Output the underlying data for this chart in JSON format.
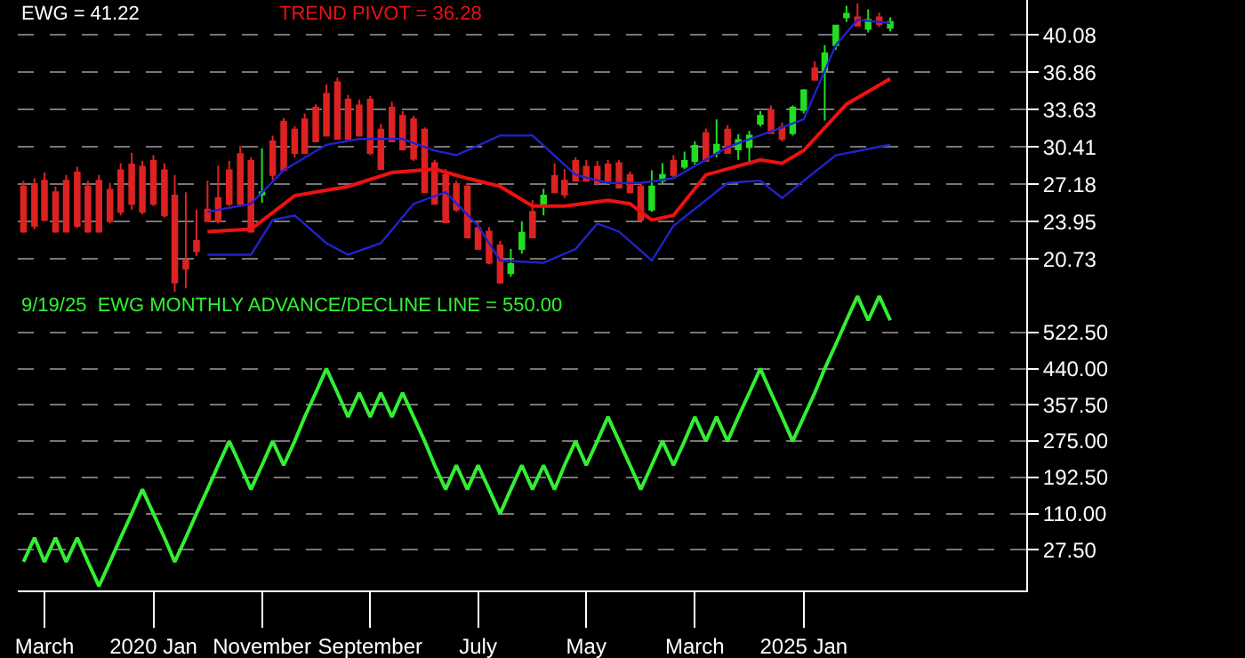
{
  "chart_data": [
    {
      "type": "candlestick",
      "x": [
        "2019-01",
        "2019-02",
        "2019-03",
        "2019-04",
        "2019-05",
        "2019-06",
        "2019-07",
        "2019-08",
        "2019-09",
        "2019-10",
        "2019-11",
        "2019-12",
        "2020-01",
        "2020-02",
        "2020-03",
        "2020-04",
        "2020-05",
        "2020-06",
        "2020-07",
        "2020-08",
        "2020-09",
        "2020-10",
        "2020-11",
        "2020-12",
        "2021-01",
        "2021-02",
        "2021-03",
        "2021-04",
        "2021-05",
        "2021-06",
        "2021-07",
        "2021-08",
        "2021-09",
        "2021-10",
        "2021-11",
        "2021-12",
        "2022-01",
        "2022-02",
        "2022-03",
        "2022-04",
        "2022-05",
        "2022-06",
        "2022-07",
        "2022-08",
        "2022-09",
        "2022-10",
        "2022-11",
        "2022-12",
        "2023-01",
        "2023-02",
        "2023-03",
        "2023-04",
        "2023-05",
        "2023-06",
        "2023-07",
        "2023-08",
        "2023-09",
        "2023-10",
        "2023-11",
        "2023-12",
        "2024-01",
        "2024-02",
        "2024-03",
        "2024-04",
        "2024-05",
        "2024-06",
        "2024-07",
        "2024-08",
        "2024-09",
        "2024-10",
        "2024-11",
        "2024-12",
        "2025-01",
        "2025-02",
        "2025-03",
        "2025-04",
        "2025-05",
        "2025-06",
        "2025-07",
        "2025-08",
        "2025-09"
      ],
      "ohlc": [
        [
          27.0,
          27.5,
          23.0,
          23.1
        ],
        [
          27.2,
          27.7,
          23.3,
          23.6
        ],
        [
          27.5,
          28.2,
          24.0,
          24.1
        ],
        [
          26.5,
          27.0,
          23.0,
          23.1
        ],
        [
          27.5,
          28.0,
          23.0,
          23.1
        ],
        [
          28.2,
          28.7,
          23.4,
          23.6
        ],
        [
          27.0,
          27.5,
          23.0,
          23.1
        ],
        [
          27.5,
          28.0,
          23.0,
          23.1
        ],
        [
          26.7,
          27.3,
          23.8,
          24.0
        ],
        [
          28.4,
          29.0,
          24.5,
          24.8
        ],
        [
          28.9,
          29.9,
          25.0,
          25.5
        ],
        [
          28.7,
          29.2,
          24.6,
          24.8
        ],
        [
          29.2,
          29.7,
          25.3,
          25.5
        ],
        [
          28.4,
          29.0,
          24.3,
          24.5
        ],
        [
          26.2,
          28.0,
          17.5,
          18.7
        ],
        [
          20.6,
          26.5,
          18.2,
          19.9
        ],
        [
          22.3,
          25.0,
          21.0,
          21.4
        ],
        [
          25.0,
          27.5,
          24.0,
          24.0
        ],
        [
          26.0,
          28.8,
          23.8,
          24.0
        ],
        [
          28.4,
          29.2,
          25.3,
          25.5
        ],
        [
          29.8,
          30.5,
          25.2,
          25.5
        ],
        [
          29.2,
          29.5,
          23.0,
          23.1
        ],
        [
          26.3,
          30.3,
          25.6,
          26.5
        ],
        [
          30.9,
          31.4,
          27.5,
          28.0
        ],
        [
          32.6,
          32.9,
          28.4,
          28.4
        ],
        [
          31.9,
          32.2,
          29.5,
          29.9
        ],
        [
          32.8,
          33.3,
          29.8,
          29.9
        ],
        [
          33.8,
          34.1,
          30.9,
          30.9
        ],
        [
          35.0,
          35.8,
          31.4,
          31.4
        ],
        [
          36.0,
          36.4,
          31.1,
          31.1
        ],
        [
          34.5,
          34.9,
          31.1,
          31.1
        ],
        [
          34.0,
          34.5,
          31.4,
          31.4
        ],
        [
          34.5,
          34.8,
          29.7,
          29.9
        ],
        [
          31.9,
          32.4,
          28.5,
          28.5
        ],
        [
          33.8,
          34.3,
          30.9,
          30.9
        ],
        [
          33.1,
          33.5,
          30.1,
          30.2
        ],
        [
          32.8,
          33.1,
          29.2,
          29.4
        ],
        [
          31.9,
          32.1,
          26.5,
          26.5
        ],
        [
          29.0,
          29.3,
          25.5,
          25.5
        ],
        [
          28.0,
          28.5,
          23.9,
          23.9
        ],
        [
          27.2,
          27.5,
          24.8,
          25.0
        ],
        [
          27.0,
          27.3,
          22.5,
          22.6
        ],
        [
          23.4,
          24.0,
          21.6,
          21.6
        ],
        [
          23.1,
          23.5,
          20.3,
          20.4
        ],
        [
          21.9,
          22.3,
          18.6,
          18.7
        ],
        [
          19.5,
          21.6,
          19.2,
          20.3
        ],
        [
          21.6,
          24.0,
          21.2,
          23.0
        ],
        [
          24.8,
          25.8,
          22.6,
          22.6
        ],
        [
          25.5,
          26.8,
          24.5,
          26.2
        ],
        [
          27.9,
          29.0,
          26.5,
          26.5
        ],
        [
          27.5,
          28.5,
          26.0,
          26.3
        ],
        [
          29.2,
          29.5,
          27.5,
          27.5
        ],
        [
          28.7,
          29.3,
          27.4,
          27.5
        ],
        [
          28.7,
          29.2,
          27.1,
          27.3
        ],
        [
          28.9,
          29.3,
          27.3,
          27.5
        ],
        [
          29.0,
          29.3,
          26.9,
          26.9
        ],
        [
          28.0,
          28.3,
          26.5,
          26.5
        ],
        [
          27.0,
          27.2,
          24.0,
          24.1
        ],
        [
          25.0,
          28.4,
          24.8,
          27.0
        ],
        [
          27.5,
          29.0,
          27.2,
          28.0
        ],
        [
          29.2,
          29.7,
          27.8,
          28.0
        ],
        [
          28.7,
          30.0,
          28.5,
          29.2
        ],
        [
          29.2,
          30.9,
          28.9,
          30.5
        ],
        [
          31.6,
          32.0,
          29.2,
          29.2
        ],
        [
          29.9,
          32.8,
          29.5,
          30.6
        ],
        [
          31.9,
          32.3,
          29.9,
          29.9
        ],
        [
          30.2,
          31.5,
          29.3,
          31.0
        ],
        [
          30.4,
          31.8,
          29.0,
          31.4
        ],
        [
          32.4,
          33.5,
          32.2,
          33.1
        ],
        [
          33.6,
          34.0,
          31.6,
          31.6
        ],
        [
          32.1,
          32.5,
          30.9,
          31.1
        ],
        [
          31.6,
          34.0,
          31.4,
          33.8
        ],
        [
          33.6,
          35.4,
          33.3,
          35.3
        ],
        [
          37.2,
          37.8,
          36.2,
          36.2
        ],
        [
          37.0,
          39.2,
          32.7,
          38.5
        ],
        [
          39.2,
          40.9,
          38.8,
          40.9
        ],
        [
          41.6,
          42.6,
          41.2,
          41.9
        ],
        [
          41.6,
          42.8,
          40.9,
          40.9
        ],
        [
          40.6,
          42.3,
          40.3,
          41.4
        ],
        [
          41.6,
          42.0,
          40.8,
          41.0
        ],
        [
          40.7,
          41.6,
          40.4,
          41.2
        ]
      ],
      "series": [
        {
          "type": "line",
          "color": "#ee1111",
          "x": [
            "2020-06",
            "2020-10",
            "2021-02",
            "2021-07",
            "2021-11",
            "2022-03",
            "2022-06",
            "2022-09",
            "2022-12",
            "2023-03",
            "2023-07",
            "2023-09",
            "2023-11",
            "2024-01",
            "2024-04",
            "2024-09",
            "2024-11",
            "2025-01",
            "2025-05",
            "2025-09"
          ],
          "values": [
            23.1,
            23.3,
            26.2,
            27.0,
            28.2,
            28.5,
            27.7,
            27.0,
            25.3,
            25.3,
            25.8,
            25.5,
            24.1,
            24.5,
            28.0,
            29.3,
            29.0,
            30.1,
            34.1,
            36.3
          ]
        },
        {
          "type": "line",
          "color": "#2222cc",
          "x": [
            "2020-06",
            "2020-10",
            "2021-01",
            "2021-05",
            "2021-08",
            "2021-12",
            "2022-03",
            "2022-05",
            "2022-09",
            "2022-12",
            "2023-04",
            "2023-07",
            "2023-10",
            "2024-01",
            "2024-06",
            "2024-11",
            "2025-01",
            "2025-04",
            "2025-06",
            "2025-09"
          ],
          "values": [
            24.8,
            25.5,
            28.4,
            30.6,
            31.1,
            31.1,
            30.1,
            29.7,
            31.4,
            31.4,
            28.0,
            27.3,
            27.3,
            27.7,
            30.4,
            32.1,
            32.8,
            39.2,
            41.4,
            41.1
          ]
        },
        {
          "type": "line",
          "color": "#2222cc",
          "x": [
            "2020-06",
            "2020-10",
            "2020-12",
            "2021-02",
            "2021-05",
            "2021-07",
            "2021-10",
            "2022-01",
            "2022-04",
            "2022-07",
            "2022-09",
            "2023-01",
            "2023-04",
            "2023-06",
            "2023-08",
            "2023-11",
            "2024-01",
            "2024-06",
            "2024-09",
            "2024-11",
            "2025-04",
            "2025-09"
          ],
          "values": [
            21.1,
            21.1,
            24.1,
            24.5,
            22.1,
            21.1,
            22.1,
            25.5,
            26.5,
            23.6,
            20.6,
            20.4,
            21.6,
            23.8,
            23.1,
            20.6,
            23.6,
            27.3,
            27.5,
            26.0,
            29.7,
            30.6
          ]
        }
      ],
      "annotations": [
        "EWG = 41.22",
        "TREND PIVOT = 36.28"
      ],
      "xlim": [
        "2018-12-16",
        "2026-09-18"
      ],
      "ylim": [
        17.9,
        43.1
      ],
      "yticks": [
        20.73,
        23.95,
        27.18,
        30.41,
        33.63,
        36.86,
        40.08
      ],
      "grid": "y",
      "tick_labels": "y"
    },
    {
      "type": "line",
      "x": [
        "2019-01",
        "2019-02",
        "2019-03",
        "2019-04",
        "2019-05",
        "2019-06",
        "2019-07",
        "2019-08",
        "2019-09",
        "2019-10",
        "2019-11",
        "2019-12",
        "2020-01",
        "2020-02",
        "2020-03",
        "2020-04",
        "2020-05",
        "2020-06",
        "2020-07",
        "2020-08",
        "2020-09",
        "2020-10",
        "2020-11",
        "2020-12",
        "2021-01",
        "2021-02",
        "2021-03",
        "2021-04",
        "2021-05",
        "2021-06",
        "2021-07",
        "2021-08",
        "2021-09",
        "2021-10",
        "2021-11",
        "2021-12",
        "2022-01",
        "2022-02",
        "2022-03",
        "2022-04",
        "2022-05",
        "2022-06",
        "2022-07",
        "2022-08",
        "2022-09",
        "2022-10",
        "2022-11",
        "2022-12",
        "2023-01",
        "2023-02",
        "2023-03",
        "2023-04",
        "2023-05",
        "2023-06",
        "2023-07",
        "2023-08",
        "2023-09",
        "2023-10",
        "2023-11",
        "2023-12",
        "2024-01",
        "2024-02",
        "2024-03",
        "2024-04",
        "2024-05",
        "2024-06",
        "2024-07",
        "2024-08",
        "2024-09",
        "2024-10",
        "2024-11",
        "2024-12",
        "2025-01",
        "2025-02",
        "2025-03",
        "2025-04",
        "2025-05",
        "2025-06",
        "2025-07",
        "2025-08",
        "2025-09"
      ],
      "series": [
        {
          "color": "#33ee33",
          "values": [
            0,
            55,
            0,
            55,
            0,
            55,
            0,
            -55,
            0,
            55,
            110,
            165,
            110,
            55,
            0,
            55,
            110,
            165,
            220,
            275,
            220,
            165,
            220,
            275,
            220,
            275,
            330,
            385,
            440,
            385,
            330,
            385,
            330,
            385,
            330,
            385,
            330,
            275,
            220,
            165,
            220,
            165,
            220,
            165,
            110,
            165,
            220,
            165,
            220,
            165,
            220,
            275,
            220,
            275,
            330,
            275,
            220,
            165,
            220,
            275,
            220,
            275,
            330,
            275,
            330,
            275,
            330,
            385,
            440,
            385,
            330,
            275,
            330,
            385,
            440,
            495,
            550,
            605,
            550,
            605,
            550
          ]
        }
      ],
      "annotations": [
        "9/19/25  EWG MONTHLY ADVANCE/DECLINE LINE = 550.00"
      ],
      "xlim": [
        "2018-12-16",
        "2026-09-18"
      ],
      "xticks": [
        {
          "value": "2019-03",
          "label": "March"
        },
        {
          "value": "2020-01",
          "label": "2020 Jan"
        },
        {
          "value": "2020-11",
          "label": "November"
        },
        {
          "value": "2021-09",
          "label": "September"
        },
        {
          "value": "2022-07",
          "label": "July"
        },
        {
          "value": "2023-05",
          "label": "May"
        },
        {
          "value": "2024-03",
          "label": "March"
        },
        {
          "value": "2025-01",
          "label": "2025 Jan"
        }
      ],
      "ylim": [
        -65,
        615
      ],
      "yticks": [
        {
          "value": 27.5,
          "label": "27.50"
        },
        {
          "value": 110,
          "label": "110.00"
        },
        {
          "value": 192.5,
          "label": "192.50"
        },
        {
          "value": 275,
          "label": "275.00"
        },
        {
          "value": 357.5,
          "label": "357.50"
        },
        {
          "value": 440,
          "label": "440.00"
        },
        {
          "value": 522.5,
          "label": "522.50"
        }
      ],
      "grid": "y"
    }
  ]
}
